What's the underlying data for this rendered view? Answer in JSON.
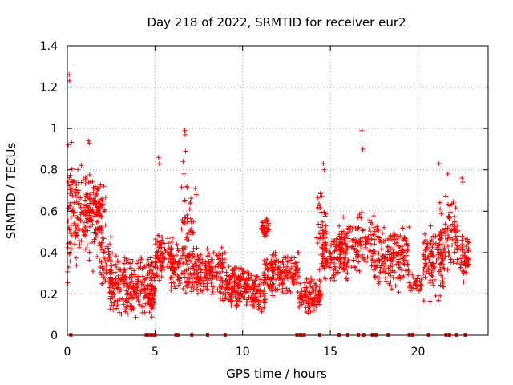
{
  "chart_data": {
    "type": "scatter",
    "title": "Day 218 of 2022, SRMTID for receiver eur2",
    "xlabel": "GPS time / hours",
    "ylabel": "SRMTID / TECUs",
    "xlim": [
      0,
      24
    ],
    "ylim": [
      0,
      1.4
    ],
    "x_ticks": [
      0,
      5,
      10,
      15,
      20
    ],
    "x_tick_labels": [
      "0",
      "5",
      "10",
      "15",
      "20"
    ],
    "y_ticks": [
      0,
      0.2,
      0.4,
      0.6,
      0.8,
      1.0,
      1.2,
      1.4
    ],
    "y_tick_labels": [
      "0",
      "0.2",
      "0.4",
      "0.6",
      "0.8",
      "1",
      "1.2",
      "1.4"
    ],
    "grid": true,
    "marker": "+",
    "color": "#ff0000",
    "series": [
      {
        "name": "SRMTID",
        "segments": [
          {
            "x_range": [
              0.0,
              0.3
            ],
            "y_range": [
              0.2,
              0.95
            ],
            "count": 40
          },
          {
            "x_range": [
              0.3,
              2.0
            ],
            "y_range": [
              0.3,
              0.85
            ],
            "count": 140
          },
          {
            "x_range": [
              1.0,
              2.2
            ],
            "y_range": [
              0.45,
              0.75
            ],
            "count": 60
          },
          {
            "x_range": [
              1.8,
              2.5
            ],
            "y_range": [
              0.2,
              0.5
            ],
            "count": 50
          },
          {
            "x_range": [
              2.4,
              5.0
            ],
            "y_range": [
              0.08,
              0.4
            ],
            "count": 260
          },
          {
            "x_range": [
              4.6,
              5.0
            ],
            "y_range": [
              0.1,
              0.3
            ],
            "count": 25
          },
          {
            "x_range": [
              5.0,
              6.0
            ],
            "y_range": [
              0.25,
              0.5
            ],
            "count": 90
          },
          {
            "x_range": [
              5.9,
              7.2
            ],
            "y_range": [
              0.18,
              0.45
            ],
            "count": 100
          },
          {
            "x_range": [
              6.5,
              7.2
            ],
            "y_range": [
              0.35,
              0.75
            ],
            "count": 40
          },
          {
            "x_range": [
              7.2,
              9.0
            ],
            "y_range": [
              0.15,
              0.45
            ],
            "count": 160
          },
          {
            "x_range": [
              9.0,
              10.8
            ],
            "y_range": [
              0.12,
              0.35
            ],
            "count": 180
          },
          {
            "x_range": [
              10.5,
              11.3
            ],
            "y_range": [
              0.08,
              0.3
            ],
            "count": 60
          },
          {
            "x_range": [
              11.0,
              11.5
            ],
            "y_range": [
              0.45,
              0.58
            ],
            "count": 30
          },
          {
            "x_range": [
              11.2,
              13.2
            ],
            "y_range": [
              0.18,
              0.42
            ],
            "count": 170
          },
          {
            "x_range": [
              13.2,
              14.5
            ],
            "y_range": [
              0.1,
              0.3
            ],
            "count": 110
          },
          {
            "x_range": [
              14.2,
              14.8
            ],
            "y_range": [
              0.3,
              0.75
            ],
            "count": 40
          },
          {
            "x_range": [
              14.5,
              16.0
            ],
            "y_range": [
              0.25,
              0.5
            ],
            "count": 120
          },
          {
            "x_range": [
              15.5,
              17.5
            ],
            "y_range": [
              0.3,
              0.6
            ],
            "count": 140
          },
          {
            "x_range": [
              17.5,
              19.5
            ],
            "y_range": [
              0.2,
              0.55
            ],
            "count": 170
          },
          {
            "x_range": [
              19.5,
              20.3
            ],
            "y_range": [
              0.2,
              0.3
            ],
            "count": 30
          },
          {
            "x_range": [
              20.3,
              21.5
            ],
            "y_range": [
              0.15,
              0.55
            ],
            "count": 110
          },
          {
            "x_range": [
              21.2,
              22.3
            ],
            "y_range": [
              0.3,
              0.7
            ],
            "count": 80
          },
          {
            "x_range": [
              22.4,
              22.9
            ],
            "y_range": [
              0.25,
              0.5
            ],
            "count": 50
          }
        ],
        "outliers": [
          [
            0.1,
            1.26
          ],
          [
            0.12,
            1.23
          ],
          [
            0.05,
            0.92
          ],
          [
            1.2,
            0.94
          ],
          [
            1.25,
            0.93
          ],
          [
            5.2,
            0.86
          ],
          [
            5.25,
            0.83
          ],
          [
            6.7,
            0.99
          ],
          [
            6.72,
            0.97
          ],
          [
            6.75,
            0.89
          ],
          [
            6.6,
            0.84
          ],
          [
            6.65,
            0.78
          ],
          [
            7.3,
            0.71
          ],
          [
            7.35,
            0.68
          ],
          [
            14.6,
            0.83
          ],
          [
            14.65,
            0.8
          ],
          [
            16.8,
            0.99
          ],
          [
            16.85,
            0.9
          ],
          [
            21.2,
            0.83
          ],
          [
            21.7,
            0.78
          ],
          [
            22.5,
            0.76
          ],
          [
            22.55,
            0.74
          ],
          [
            2.0,
            0.65
          ],
          [
            2.1,
            0.6
          ]
        ],
        "zero_markers": [
          0.2,
          4.5,
          4.6,
          4.8,
          5.0,
          6.2,
          6.3,
          7.1,
          8.0,
          9.0,
          13.1,
          13.3,
          13.5,
          14.4,
          15.5,
          16.0,
          16.6,
          16.9,
          17.4,
          17.6,
          18.3,
          19.5,
          19.7,
          20.6,
          21.6,
          21.8,
          22.2,
          22.7
        ]
      }
    ]
  }
}
